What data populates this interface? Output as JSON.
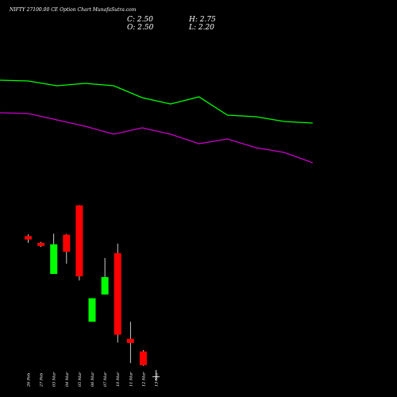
{
  "title": "NIFTY 27100.00  CE Option  Chart MunafaSutra.com",
  "ohlc": {
    "close": "C: 2.50",
    "high": "H: 2.75",
    "open": "O: 2.50",
    "low": "L: 2.20"
  },
  "colors": {
    "background": "#000000",
    "up": "#00ff00",
    "down": "#ff0000",
    "line_green": "#00ff00",
    "line_magenta": "#cc00cc",
    "wick": "#ffffff",
    "text": "#ffffff"
  },
  "chart_data": [
    {
      "type": "line",
      "series": [
        {
          "color": "#00ff00",
          "values": [
            88,
            87,
            81,
            84,
            81,
            66,
            58,
            67,
            44,
            42,
            36,
            34
          ]
        },
        {
          "color": "#cc00cc",
          "values": [
            47,
            46,
            38,
            30,
            20,
            28,
            20,
            8,
            14,
            3,
            -3,
            -16
          ]
        }
      ]
    },
    {
      "type": "candlestick",
      "categories": [
        "26 Feb",
        "27 Feb",
        "03 Mar",
        "04 Mar",
        "05 Mar",
        "06 Mar",
        "07 Mar",
        "10 Mar",
        "11 Mar",
        "12 Mar",
        "13 Mar"
      ],
      "candles": [
        {
          "open": 7.6,
          "high": 8.1,
          "low": 5.6,
          "close": 6.6
        },
        {
          "open": 5.6,
          "high": 5.9,
          "low": 4.4,
          "close": 4.7
        },
        {
          "open": -3.5,
          "high": 8.3,
          "low": -3.5,
          "close": 5.2
        },
        {
          "open": 8.0,
          "high": 8.2,
          "low": -0.5,
          "close": 3.0
        },
        {
          "open": 16.6,
          "high": 16.7,
          "low": -5.4,
          "close": -4.2
        },
        {
          "open": -17.5,
          "high": -10.6,
          "low": -17.5,
          "close": -10.6
        },
        {
          "open": -9.5,
          "high": 1.2,
          "low": -9.5,
          "close": -4.4
        },
        {
          "open": 2.6,
          "high": 5.4,
          "low": -23.6,
          "close": -21.3
        },
        {
          "open": -22.5,
          "high": -17.5,
          "low": -29.6,
          "close": -23.7
        },
        {
          "open": -26.2,
          "high": -25.8,
          "low": -30.4,
          "close": -30.2
        },
        {
          "open": -33.5,
          "high": -31.6,
          "low": -34.9,
          "close": -33.6
        }
      ]
    }
  ]
}
